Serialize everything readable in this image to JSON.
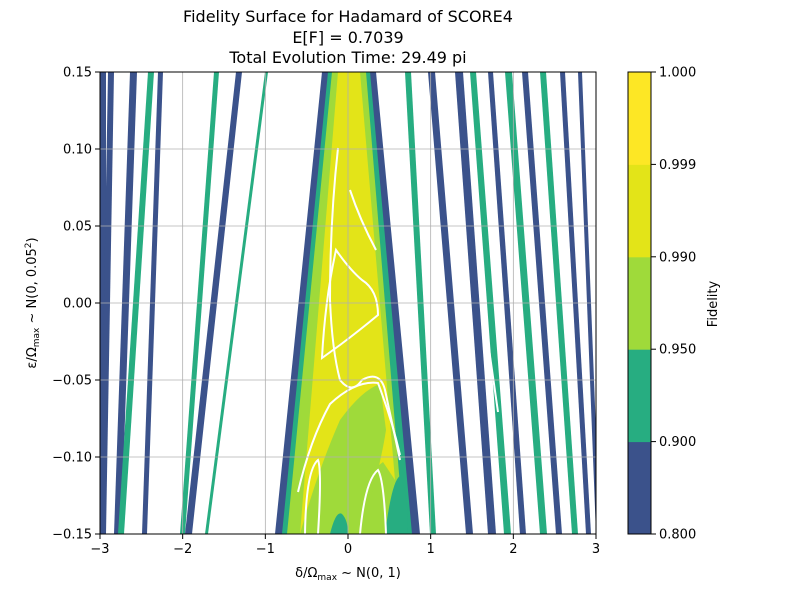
{
  "chart_data": {
    "type": "heatmap",
    "title": "Fidelity Surface for Hadamard of SCORE4",
    "subtitle_lines": [
      "E[F] = 0.7039",
      "Total Evolution Time: 29.49 pi"
    ],
    "xlabel": {
      "prefix": "δ/Ω",
      "sub": "max",
      "suffix": " ~ N(0, 1)"
    },
    "ylabel": {
      "prefix": "ε/Ω",
      "sub": "max",
      "suffix": " ~ N(0, 0.05",
      "sup": "2",
      "end": ")"
    },
    "xlim": [
      -3,
      3
    ],
    "ylim": [
      -0.15,
      0.15
    ],
    "x_ticks": [
      -3,
      -2,
      -1,
      0,
      1,
      2,
      3
    ],
    "x_tick_labels": [
      "−3",
      "−2",
      "−1",
      "0",
      "1",
      "2",
      "3"
    ],
    "y_ticks": [
      -0.15,
      -0.1,
      -0.05,
      0.0,
      0.05,
      0.1,
      0.15
    ],
    "y_tick_labels": [
      "−0.15",
      "−0.10",
      "−0.05",
      "0.00",
      "0.05",
      "0.10",
      "0.15"
    ],
    "grid": true,
    "colorbar": {
      "label": "Fidelity",
      "levels": [
        0.8,
        0.9,
        0.95,
        0.99,
        0.999,
        1.0
      ],
      "level_labels": [
        "0.800",
        "0.900",
        "0.950",
        "0.990",
        "0.999",
        "1.000"
      ],
      "colors": [
        "#3b528b",
        "#27ad81",
        "#9fda3a",
        "#e3e418",
        "#fde725"
      ]
    }
  }
}
